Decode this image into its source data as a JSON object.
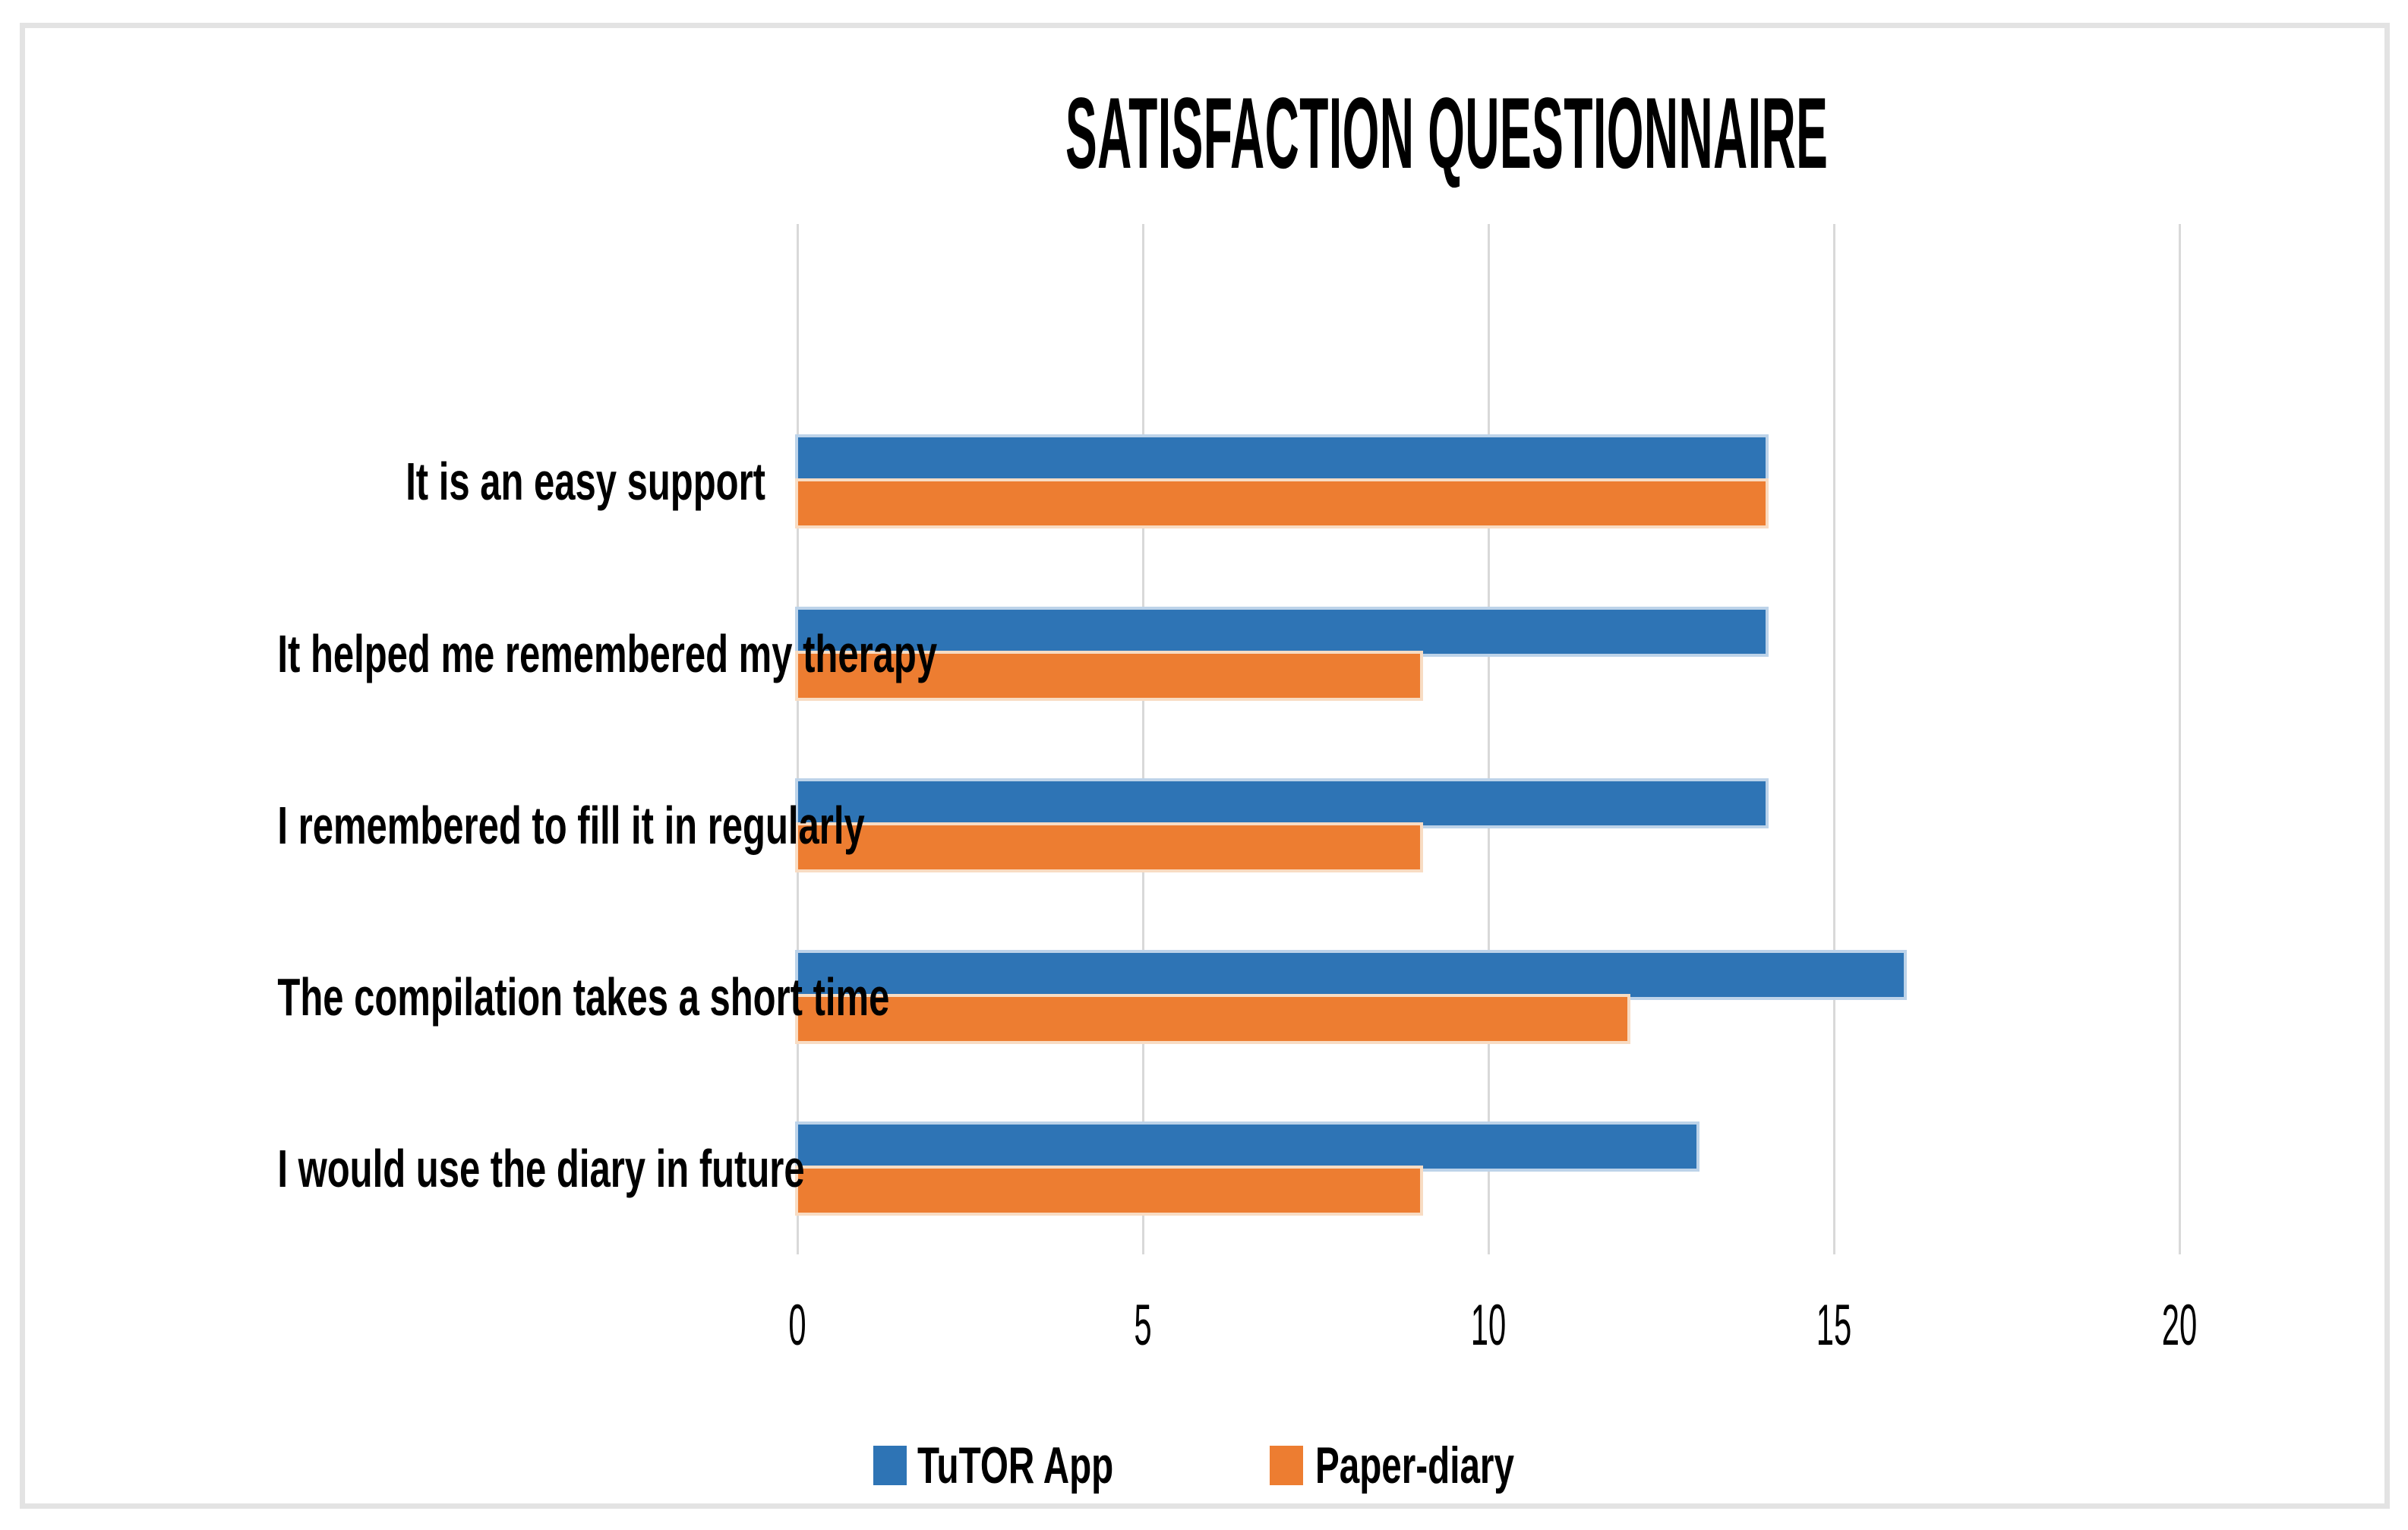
{
  "chart_data": {
    "type": "bar",
    "orientation": "horizontal",
    "title": "SATISFACTION QUESTIONNAIRE",
    "categories": [
      "It is an easy support",
      "It helped me remembered my therapy",
      "I remembered to fill it in regularly",
      "The compilation takes a short time",
      "I would use the diary in future"
    ],
    "series": [
      {
        "name": "TuTOR App",
        "color": "#2e74b5",
        "halo": "#bdd3e9",
        "values": [
          14,
          14,
          14,
          16,
          13
        ]
      },
      {
        "name": "Paper-diary",
        "color": "#ed7d31",
        "halo": "#f8dcc3",
        "values": [
          14,
          9,
          9,
          12,
          9
        ]
      }
    ],
    "xlim": [
      0,
      20
    ],
    "xticks": [
      "0",
      "5",
      "10",
      "15",
      "20"
    ],
    "grid": "vertical-gridlines-on",
    "legend_position": "bottom",
    "plot_background": "#ffffff",
    "gridline_color": "#d9d9d9"
  }
}
